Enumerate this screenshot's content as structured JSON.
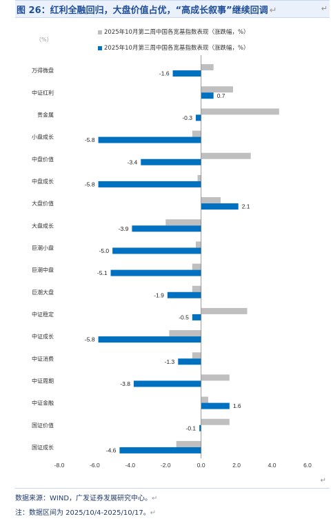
{
  "title": {
    "text": "图 26：红利全融回归，大盘价值占优，“高成长叙事”继续回调",
    "mark": "↵"
  },
  "corner_mark": "↵",
  "legend": {
    "items": [
      {
        "label": "2025年10月第二周中国各宽基指数表现（涨跌幅，%）",
        "color": "#bfbfbf"
      },
      {
        "label": "2025年10月第三周中国各宽基指数表现（涨跌幅，%）",
        "color": "#0070c0"
      }
    ]
  },
  "unit_label": "（%）",
  "chart_data": {
    "type": "bar",
    "orientation": "horizontal",
    "categories": [
      "万得微盘",
      "中证红利",
      "贵金属",
      "小盘成长",
      "中盘价值",
      "中盘成长",
      "大盘价值",
      "大盘成长",
      "巨潮小盘",
      "巨潮中盘",
      "巨潮大盘",
      "中证稳定",
      "中证成长",
      "中证消费",
      "中证周期",
      "中证金融",
      "国证价值",
      "国证成长"
    ],
    "series": [
      {
        "name": "2025年10月第二周中国各宽基指数表现（涨跌幅，%）",
        "color": "#bfbfbf",
        "values": [
          0.7,
          1.8,
          4.4,
          -0.5,
          2.8,
          -0.2,
          1.1,
          -2.0,
          -0.3,
          -0.5,
          -0.5,
          2.6,
          -1.8,
          -0.5,
          1.6,
          0.4,
          1.6,
          -1.4
        ]
      },
      {
        "name": "2025年10月第三周中国各宽基指数表现（涨跌幅，%）",
        "color": "#0070c0",
        "values": [
          -1.6,
          0.7,
          -0.3,
          -5.8,
          -3.4,
          -5.8,
          2.1,
          -3.9,
          -5.0,
          -5.1,
          -1.9,
          -0.5,
          -5.8,
          -1.3,
          -3.8,
          1.6,
          -0.1,
          -4.6
        ]
      }
    ],
    "data_labels": [
      "-1.6",
      "0.7",
      "-0.3",
      "-5.8",
      "-3.4",
      "-5.8",
      "2.1",
      "-3.9",
      "-5.0",
      "-5.1",
      "-1.9",
      "-0.5",
      "-5.8",
      "-1.3",
      "-3.8",
      "1.6",
      "-0.1",
      "-4.6"
    ],
    "xlim": [
      -8.0,
      6.0
    ],
    "xticks": [
      "-8.0",
      "-6.0",
      "-4.0",
      "-2.0",
      "0.0",
      "2.0",
      "4.0",
      "6.0"
    ],
    "xtick_values": [
      -8,
      -6,
      -4,
      -2,
      0,
      2,
      4,
      6
    ],
    "grid": false,
    "legend_position": "top"
  },
  "after_chart_mark": "↵",
  "footer": {
    "source": "数据来源：WIND，广发证券发展研究中心。",
    "source_mark": "↵",
    "note": "注：数据区间为 2025/10/4-2025/10/17。",
    "note_mark": "↵"
  }
}
